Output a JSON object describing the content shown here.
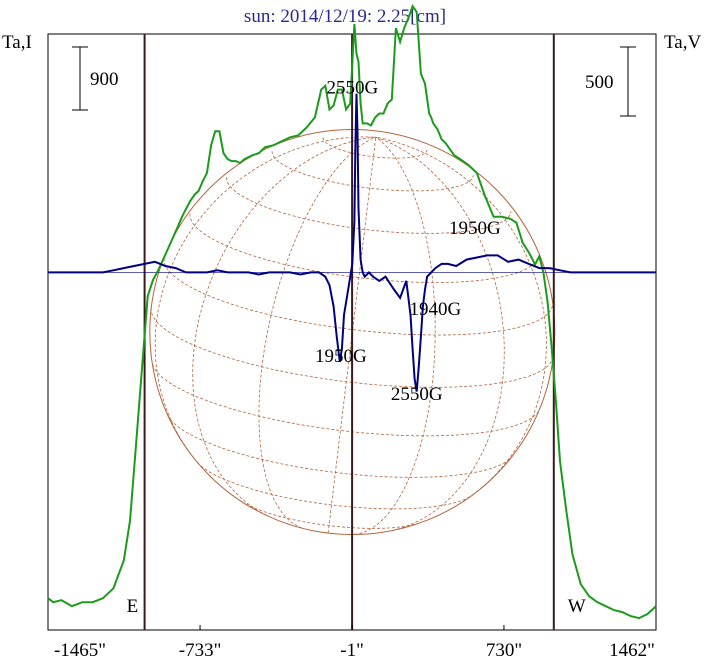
{
  "chart_data": {
    "type": "line",
    "title": "sun: 2014/12/19: 2.25[cm]",
    "left_axis_label": "Ta,I",
    "right_axis_label": "Ta,V",
    "left_scale_bar_value": "900",
    "right_scale_bar_value": "500",
    "x_ticks": [
      "-1465\"",
      "-733\"",
      "-1\"",
      "730\"",
      "1462\""
    ],
    "x_tick_values": [
      -1465,
      -733,
      -1,
      730,
      1462
    ],
    "xlim": [
      -1465,
      1462
    ],
    "ylim_intensity": [
      -200,
      2800
    ],
    "ylim_polarization": [
      -840,
      560
    ],
    "limb_markers": [
      {
        "label": "E",
        "x": -1000
      },
      {
        "label": "W",
        "x": 970
      }
    ],
    "center_line_x": -1,
    "solar_disk": {
      "x_center": 0,
      "radius_arcsec": 975,
      "grid": true
    },
    "annotations": [
      {
        "label": "2550G",
        "x": 0,
        "y_pol": 420
      },
      {
        "label": "1950G",
        "x": 590,
        "y_pol": 90
      },
      {
        "label": "1940G",
        "x": 400,
        "y_pol": -100
      },
      {
        "label": "1950G",
        "x": -55,
        "y_pol": -210
      },
      {
        "label": "2550G",
        "x": 310,
        "y_pol": -300
      }
    ],
    "series": [
      {
        "name": "",
        "axis": "left",
        "color": "#1a9c1a",
        "x": [
          -1465,
          -1440,
          -1400,
          -1350,
          -1300,
          -1250,
          -1200,
          -1150,
          -1100,
          -1070,
          -1040,
          -1010,
          -985,
          -960,
          -930,
          -900,
          -870,
          -840,
          -820,
          -800,
          -780,
          -760,
          -740,
          -720,
          -700,
          -680,
          -660,
          -640,
          -620,
          -600,
          -580,
          -560,
          -540,
          -520,
          -500,
          -480,
          -450,
          -420,
          -380,
          -340,
          -300,
          -260,
          -220,
          -180,
          -150,
          -130,
          -110,
          -90,
          -70,
          -50,
          -30,
          -10,
          10,
          20,
          30,
          40,
          50,
          70,
          90,
          110,
          130,
          150,
          170,
          190,
          210,
          230,
          250,
          270,
          290,
          310,
          330,
          350,
          370,
          380,
          390,
          410,
          430,
          450,
          470,
          490,
          520,
          560,
          600,
          640,
          680,
          720,
          760,
          790,
          820,
          850,
          880,
          900,
          920,
          940,
          960,
          980,
          1000,
          1030,
          1060,
          1100,
          1140,
          1180,
          1220,
          1260,
          1300,
          1340,
          1380,
          1420,
          1462
        ],
        "y": [
          -40,
          -60,
          -50,
          -80,
          -60,
          -60,
          -40,
          10,
          150,
          350,
          750,
          1150,
          1480,
          1560,
          1620,
          1690,
          1760,
          1830,
          1880,
          1920,
          1960,
          1990,
          2010,
          2060,
          2100,
          2240,
          2310,
          2310,
          2200,
          2170,
          2160,
          2160,
          2150,
          2170,
          2180,
          2190,
          2200,
          2230,
          2240,
          2260,
          2280,
          2290,
          2330,
          2380,
          2520,
          2540,
          2420,
          2440,
          2520,
          2520,
          2420,
          2450,
          2850,
          2700,
          2660,
          2450,
          2350,
          2350,
          2340,
          2380,
          2400,
          2400,
          2450,
          2470,
          2830,
          2760,
          2830,
          2880,
          2940,
          2910,
          2600,
          2550,
          2400,
          2380,
          2350,
          2320,
          2270,
          2250,
          2220,
          2190,
          2170,
          2140,
          2100,
          1980,
          1880,
          1880,
          1870,
          1850,
          1750,
          1700,
          1640,
          1680,
          1600,
          1450,
          1220,
          950,
          650,
          400,
          180,
          30,
          -30,
          -60,
          -80,
          -100,
          -110,
          -130,
          -140,
          -120,
          -80
        ]
      },
      {
        "name": "",
        "axis": "right",
        "color": "#000080",
        "x": [
          -1465,
          -1400,
          -1300,
          -1200,
          -1150,
          -1100,
          -1050,
          -1000,
          -950,
          -900,
          -850,
          -800,
          -750,
          -700,
          -650,
          -600,
          -550,
          -500,
          -450,
          -400,
          -350,
          -300,
          -250,
          -200,
          -160,
          -130,
          -110,
          -90,
          -75,
          -60,
          -50,
          -40,
          -20,
          0,
          10,
          15,
          20,
          25,
          30,
          40,
          50,
          60,
          80,
          100,
          130,
          160,
          200,
          230,
          260,
          280,
          290,
          300,
          310,
          320,
          330,
          340,
          350,
          360,
          380,
          400,
          430,
          460,
          500,
          550,
          600,
          650,
          700,
          750,
          800,
          850,
          900,
          950,
          1000,
          1050,
          1100,
          1150,
          1200,
          1300,
          1400,
          1462
        ],
        "y": [
          0,
          0,
          0,
          0,
          5,
          10,
          15,
          20,
          25,
          15,
          10,
          0,
          0,
          0,
          5,
          0,
          0,
          0,
          -5,
          0,
          0,
          0,
          -5,
          0,
          0,
          -10,
          -30,
          -80,
          -150,
          -210,
          -180,
          -100,
          -40,
          20,
          120,
          300,
          420,
          330,
          150,
          30,
          0,
          -10,
          0,
          -10,
          -20,
          -10,
          -40,
          -60,
          -20,
          -100,
          -180,
          -250,
          -280,
          -220,
          -150,
          -80,
          -40,
          -10,
          0,
          10,
          20,
          20,
          15,
          30,
          35,
          40,
          40,
          25,
          30,
          20,
          10,
          10,
          5,
          0,
          0,
          0,
          0,
          0,
          0,
          0
        ]
      }
    ]
  }
}
